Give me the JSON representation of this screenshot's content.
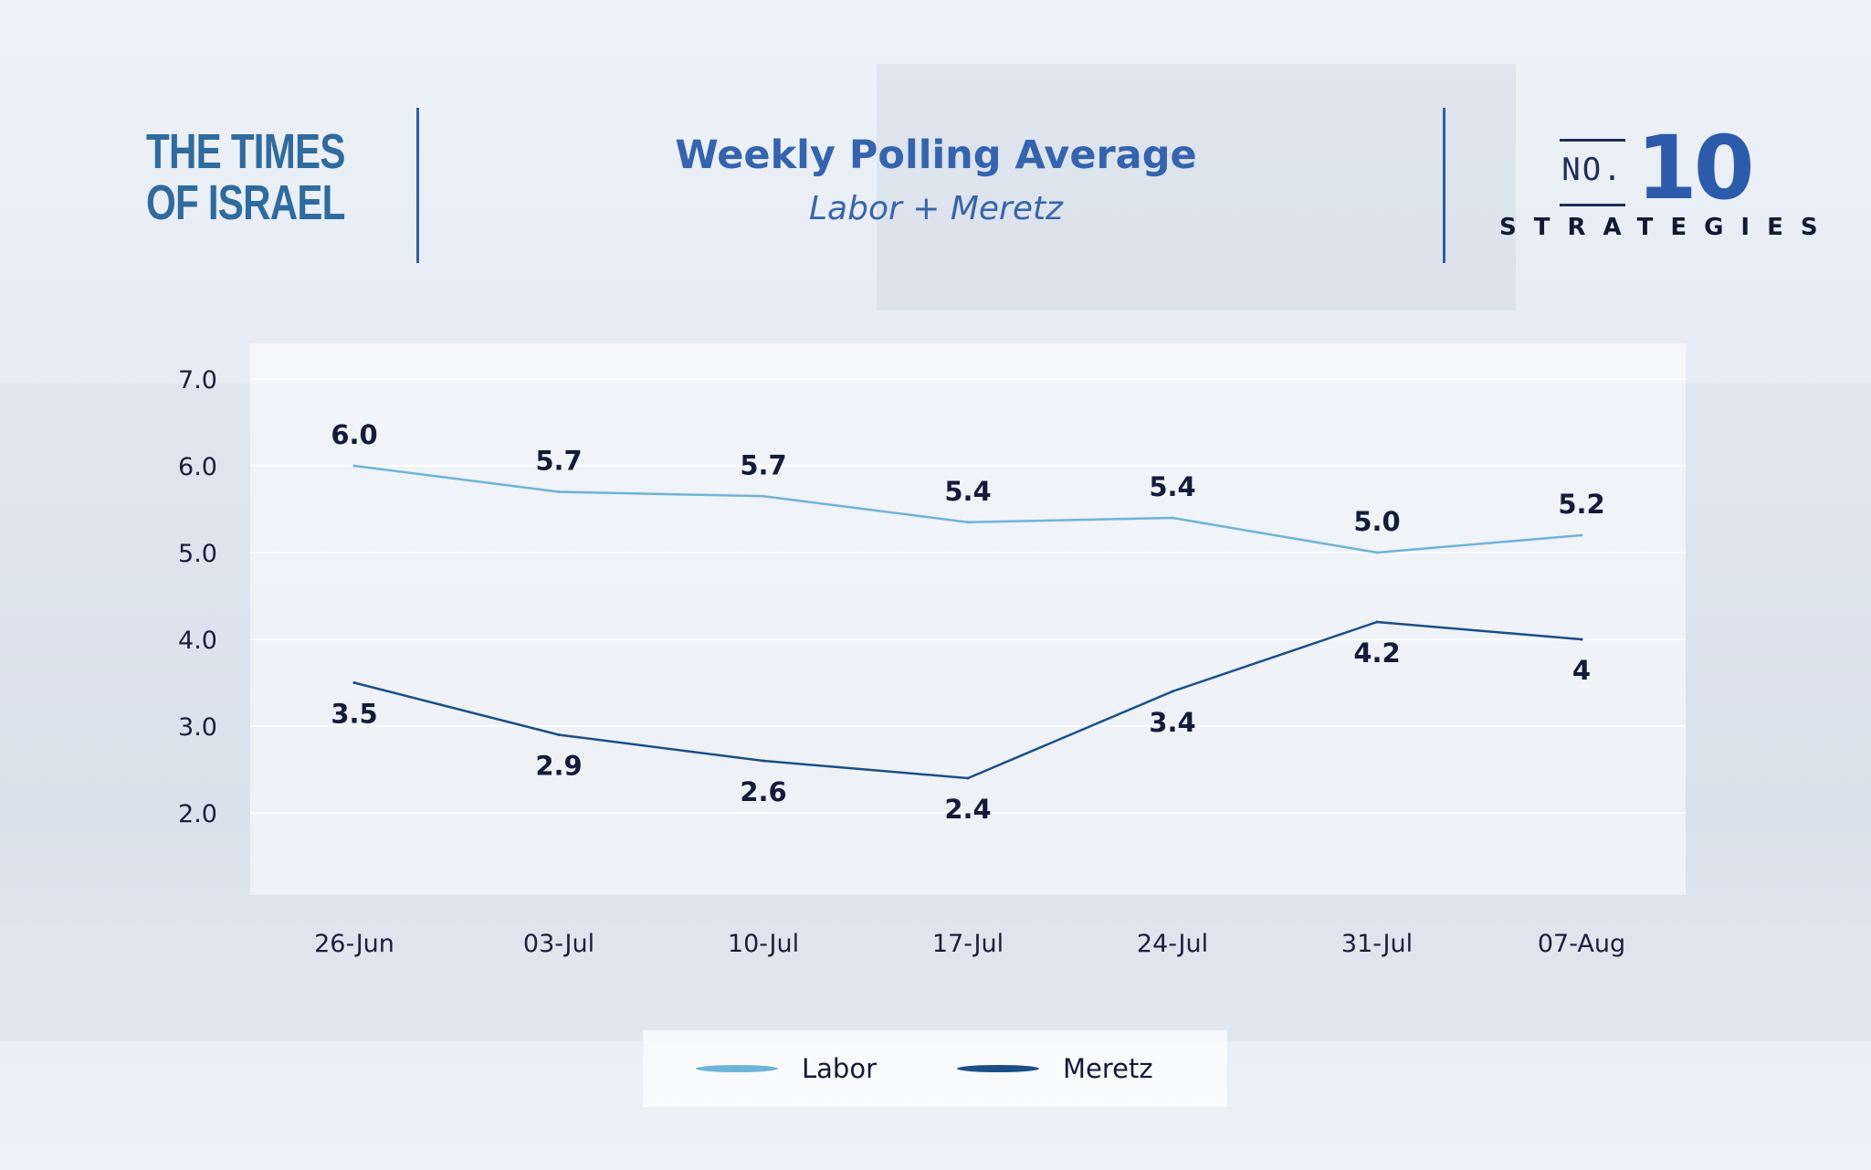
{
  "header": {
    "publisher_line1": "THE TIMES",
    "publisher_line2": "OF ISRAEL",
    "title": "Weekly Polling Average",
    "subtitle": "Labor + Meretz",
    "brand_no": "NO.",
    "brand_num": "10",
    "brand_word": "STRATEGIES"
  },
  "colors": {
    "labor": "#6fb4d8",
    "meretz": "#1a4f86",
    "title": "#3563ad",
    "label_text": "#141b3a"
  },
  "legend": [
    {
      "name": "Labor",
      "color": "#6fb4d8"
    },
    {
      "name": "Meretz",
      "color": "#1a4f86"
    }
  ],
  "chart_data": {
    "type": "line",
    "title": "Weekly Polling Average",
    "subtitle": "Labor + Meretz",
    "categories": [
      "26-Jun",
      "03-Jul",
      "10-Jul",
      "17-Jul",
      "24-Jul",
      "31-Jul",
      "07-Aug"
    ],
    "yticks": [
      "7.0",
      "6.0",
      "5.0",
      "4.0",
      "3.0",
      "2.0"
    ],
    "ylim": [
      1.0,
      7.4
    ],
    "grid": true,
    "legend_position": "bottom",
    "series": [
      {
        "name": "Labor",
        "values": [
          6.0,
          5.7,
          5.65,
          5.35,
          5.4,
          5.0,
          5.2
        ],
        "labels": [
          "6.0",
          "5.7",
          "5.7",
          "5.4",
          "5.4",
          "5.0",
          "5.2"
        ]
      },
      {
        "name": "Meretz",
        "values": [
          3.5,
          2.9,
          2.6,
          2.4,
          3.4,
          4.2,
          4.0
        ],
        "labels": [
          "3.5",
          "2.9",
          "2.6",
          "2.4",
          "3.4",
          "4.2",
          "4"
        ]
      }
    ]
  }
}
